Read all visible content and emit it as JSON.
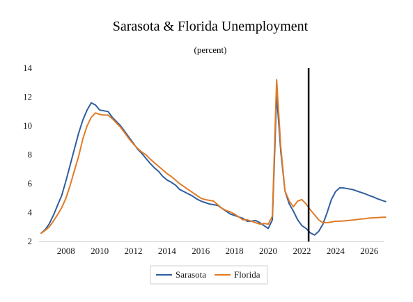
{
  "chart_data": {
    "type": "line",
    "title": "Sarasota & Florida Unemployment",
    "subtitle": "(percent)",
    "xlabel": "",
    "ylabel": "",
    "xlim": [
      2006.4,
      2026.9
    ],
    "ylim": [
      2,
      14
    ],
    "y_ticks": [
      2,
      4,
      6,
      8,
      10,
      12,
      14
    ],
    "x_ticks": [
      2008,
      2010,
      2012,
      2014,
      2016,
      2018,
      2020,
      2022,
      2024,
      2026
    ],
    "grid": false,
    "legend_position": "bottom-center",
    "vertical_marker_x": 2022.4,
    "series": [
      {
        "name": "Sarasota",
        "color": "#2f5e9e",
        "points": [
          [
            2006.5,
            2.55
          ],
          [
            2006.75,
            2.8
          ],
          [
            2007.0,
            3.2
          ],
          [
            2007.25,
            3.8
          ],
          [
            2007.5,
            4.5
          ],
          [
            2007.75,
            5.2
          ],
          [
            2008.0,
            6.2
          ],
          [
            2008.25,
            7.3
          ],
          [
            2008.5,
            8.4
          ],
          [
            2008.75,
            9.5
          ],
          [
            2009.0,
            10.4
          ],
          [
            2009.25,
            11.1
          ],
          [
            2009.5,
            11.6
          ],
          [
            2009.75,
            11.45
          ],
          [
            2010.0,
            11.1
          ],
          [
            2010.25,
            11.05
          ],
          [
            2010.5,
            11.0
          ],
          [
            2010.75,
            10.6
          ],
          [
            2011.0,
            10.3
          ],
          [
            2011.25,
            10.0
          ],
          [
            2011.5,
            9.6
          ],
          [
            2011.75,
            9.2
          ],
          [
            2012.0,
            8.8
          ],
          [
            2012.25,
            8.4
          ],
          [
            2012.5,
            8.1
          ],
          [
            2012.75,
            7.75
          ],
          [
            2013.0,
            7.4
          ],
          [
            2013.25,
            7.1
          ],
          [
            2013.5,
            6.85
          ],
          [
            2013.75,
            6.5
          ],
          [
            2014.0,
            6.25
          ],
          [
            2014.25,
            6.1
          ],
          [
            2014.5,
            5.9
          ],
          [
            2014.75,
            5.6
          ],
          [
            2015.0,
            5.45
          ],
          [
            2015.25,
            5.3
          ],
          [
            2015.5,
            5.15
          ],
          [
            2015.75,
            4.95
          ],
          [
            2016.0,
            4.8
          ],
          [
            2016.25,
            4.7
          ],
          [
            2016.5,
            4.6
          ],
          [
            2016.75,
            4.55
          ],
          [
            2017.0,
            4.5
          ],
          [
            2017.25,
            4.3
          ],
          [
            2017.5,
            4.1
          ],
          [
            2017.75,
            3.9
          ],
          [
            2018.0,
            3.8
          ],
          [
            2018.25,
            3.7
          ],
          [
            2018.5,
            3.6
          ],
          [
            2018.75,
            3.4
          ],
          [
            2019.0,
            3.4
          ],
          [
            2019.25,
            3.45
          ],
          [
            2019.5,
            3.3
          ],
          [
            2019.75,
            3.1
          ],
          [
            2020.0,
            2.9
          ],
          [
            2020.25,
            3.5
          ],
          [
            2020.5,
            12.2
          ],
          [
            2020.75,
            8.2
          ],
          [
            2021.0,
            5.5
          ],
          [
            2021.25,
            4.6
          ],
          [
            2021.5,
            4.1
          ],
          [
            2021.75,
            3.5
          ],
          [
            2022.0,
            3.1
          ],
          [
            2022.25,
            2.9
          ],
          [
            2022.5,
            2.6
          ],
          [
            2022.75,
            2.45
          ],
          [
            2023.0,
            2.7
          ],
          [
            2023.25,
            3.2
          ],
          [
            2023.5,
            4.0
          ],
          [
            2023.75,
            4.9
          ],
          [
            2024.0,
            5.45
          ],
          [
            2024.25,
            5.72
          ],
          [
            2024.5,
            5.7
          ],
          [
            2024.75,
            5.65
          ],
          [
            2025.0,
            5.6
          ],
          [
            2025.25,
            5.5
          ],
          [
            2025.5,
            5.4
          ],
          [
            2025.75,
            5.3
          ],
          [
            2026.0,
            5.18
          ],
          [
            2026.25,
            5.08
          ],
          [
            2026.5,
            4.95
          ],
          [
            2026.75,
            4.85
          ],
          [
            2027.0,
            4.75
          ]
        ]
      },
      {
        "name": "Florida",
        "color": "#e07b27",
        "points": [
          [
            2006.5,
            2.55
          ],
          [
            2006.75,
            2.75
          ],
          [
            2007.0,
            3.0
          ],
          [
            2007.25,
            3.4
          ],
          [
            2007.5,
            3.85
          ],
          [
            2007.75,
            4.35
          ],
          [
            2008.0,
            5.0
          ],
          [
            2008.25,
            5.9
          ],
          [
            2008.5,
            6.9
          ],
          [
            2008.75,
            7.9
          ],
          [
            2009.0,
            9.1
          ],
          [
            2009.25,
            10.0
          ],
          [
            2009.5,
            10.6
          ],
          [
            2009.75,
            10.9
          ],
          [
            2010.0,
            10.8
          ],
          [
            2010.25,
            10.75
          ],
          [
            2010.5,
            10.75
          ],
          [
            2010.75,
            10.5
          ],
          [
            2011.0,
            10.2
          ],
          [
            2011.25,
            9.9
          ],
          [
            2011.5,
            9.5
          ],
          [
            2011.75,
            9.1
          ],
          [
            2012.0,
            8.75
          ],
          [
            2012.25,
            8.45
          ],
          [
            2012.5,
            8.2
          ],
          [
            2012.75,
            8.0
          ],
          [
            2013.0,
            7.7
          ],
          [
            2013.25,
            7.45
          ],
          [
            2013.5,
            7.2
          ],
          [
            2013.75,
            6.95
          ],
          [
            2014.0,
            6.7
          ],
          [
            2014.25,
            6.5
          ],
          [
            2014.5,
            6.25
          ],
          [
            2014.75,
            6.0
          ],
          [
            2015.0,
            5.8
          ],
          [
            2015.25,
            5.6
          ],
          [
            2015.5,
            5.4
          ],
          [
            2015.75,
            5.2
          ],
          [
            2016.0,
            5.0
          ],
          [
            2016.25,
            4.9
          ],
          [
            2016.5,
            4.85
          ],
          [
            2016.75,
            4.8
          ],
          [
            2017.0,
            4.55
          ],
          [
            2017.25,
            4.3
          ],
          [
            2017.5,
            4.15
          ],
          [
            2017.75,
            4.05
          ],
          [
            2018.0,
            3.9
          ],
          [
            2018.25,
            3.7
          ],
          [
            2018.5,
            3.5
          ],
          [
            2018.75,
            3.5
          ],
          [
            2019.0,
            3.4
          ],
          [
            2019.25,
            3.3
          ],
          [
            2019.5,
            3.2
          ],
          [
            2019.75,
            3.25
          ],
          [
            2020.0,
            3.2
          ],
          [
            2020.25,
            3.75
          ],
          [
            2020.5,
            13.2
          ],
          [
            2020.75,
            8.5
          ],
          [
            2021.0,
            5.5
          ],
          [
            2021.25,
            4.8
          ],
          [
            2021.5,
            4.4
          ],
          [
            2021.75,
            4.8
          ],
          [
            2022.0,
            4.9
          ],
          [
            2022.25,
            4.6
          ],
          [
            2022.5,
            4.2
          ],
          [
            2022.75,
            3.85
          ],
          [
            2023.0,
            3.5
          ],
          [
            2023.25,
            3.3
          ],
          [
            2023.5,
            3.3
          ],
          [
            2023.75,
            3.35
          ],
          [
            2024.0,
            3.4
          ],
          [
            2024.25,
            3.4
          ],
          [
            2024.5,
            3.42
          ],
          [
            2024.75,
            3.45
          ],
          [
            2025.0,
            3.48
          ],
          [
            2025.25,
            3.52
          ],
          [
            2025.5,
            3.55
          ],
          [
            2025.75,
            3.58
          ],
          [
            2026.0,
            3.62
          ],
          [
            2026.25,
            3.64
          ],
          [
            2026.5,
            3.65
          ],
          [
            2026.75,
            3.67
          ],
          [
            2027.0,
            3.68
          ]
        ]
      }
    ]
  }
}
